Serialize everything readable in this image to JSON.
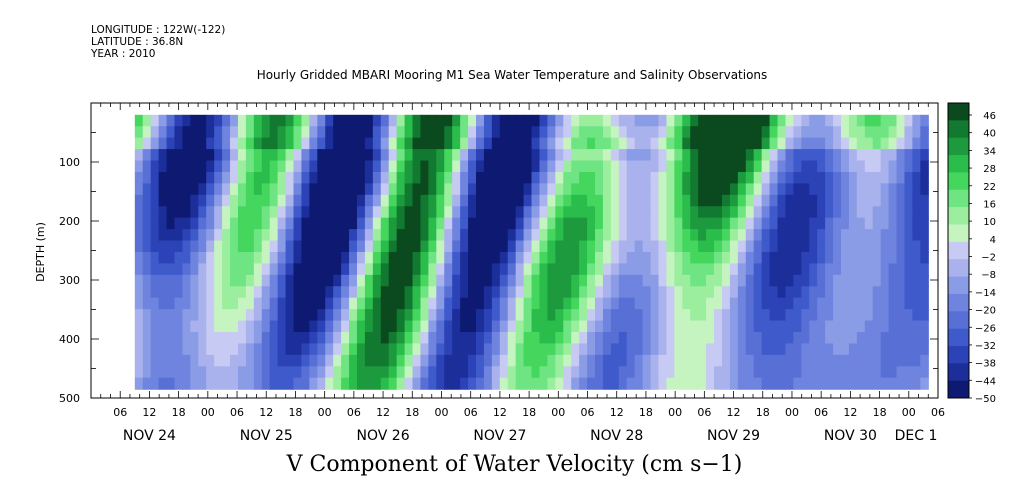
{
  "header": {
    "longitude": "LONGITUDE : 122W(-122)",
    "latitude": "LATITUDE : 36.8N",
    "year": "YEAR : 2010",
    "title": "Hourly Gridded MBARI Mooring M1 Sea Water Temperature and Salinity Observations"
  },
  "caption": "V Component of Water Velocity (cm s−1)",
  "chart_data": {
    "type": "heatmap",
    "title": "Hourly Gridded MBARI Mooring M1 Sea Water Temperature and Salinity Observations",
    "xlabel": "",
    "ylabel": "DEPTH (m)",
    "yaxis": {
      "ticks": [
        100,
        200,
        300,
        400,
        500
      ],
      "range": [
        0,
        500
      ],
      "inverted": true
    },
    "xaxis": {
      "hour_ticks": [
        "06",
        "12",
        "18",
        "00",
        "06",
        "12",
        "18",
        "00",
        "06",
        "12",
        "18",
        "00",
        "06",
        "12",
        "18",
        "00",
        "06",
        "12",
        "18",
        "00",
        "06",
        "12",
        "18",
        "00",
        "06",
        "12",
        "18",
        "00",
        "06"
      ],
      "day_labels": [
        "NOV 24",
        "NOV 25",
        "NOV 26",
        "NOV 27",
        "NOV 28",
        "NOV 29",
        "NOV 30",
        "DEC 1"
      ],
      "range": [
        "2010-11-24 00:00",
        "2010-12-01 06:00"
      ]
    },
    "colorbar": {
      "labels": [
        46,
        40,
        34,
        28,
        22,
        16,
        10,
        4,
        -2,
        -8,
        -14,
        -20,
        -26,
        -32,
        -38,
        -44,
        -50
      ],
      "range": [
        -50,
        49
      ],
      "colors": [
        "#0a4a1e",
        "#127a30",
        "#1d9a3e",
        "#2bbd4b",
        "#45d65e",
        "#6ee483",
        "#9cee9f",
        "#c5f4c0",
        "#c7caf2",
        "#a9b2ec",
        "#8a9ce6",
        "#6f84df",
        "#5870d6",
        "#3f5acb",
        "#2c43b8",
        "#1c2e99",
        "#0e1a72"
      ]
    },
    "data_extent": {
      "x": [
        "2010-11-24 09:00",
        "2010-12-01 04:00"
      ],
      "y": [
        20,
        485
      ]
    },
    "grid": false
  }
}
